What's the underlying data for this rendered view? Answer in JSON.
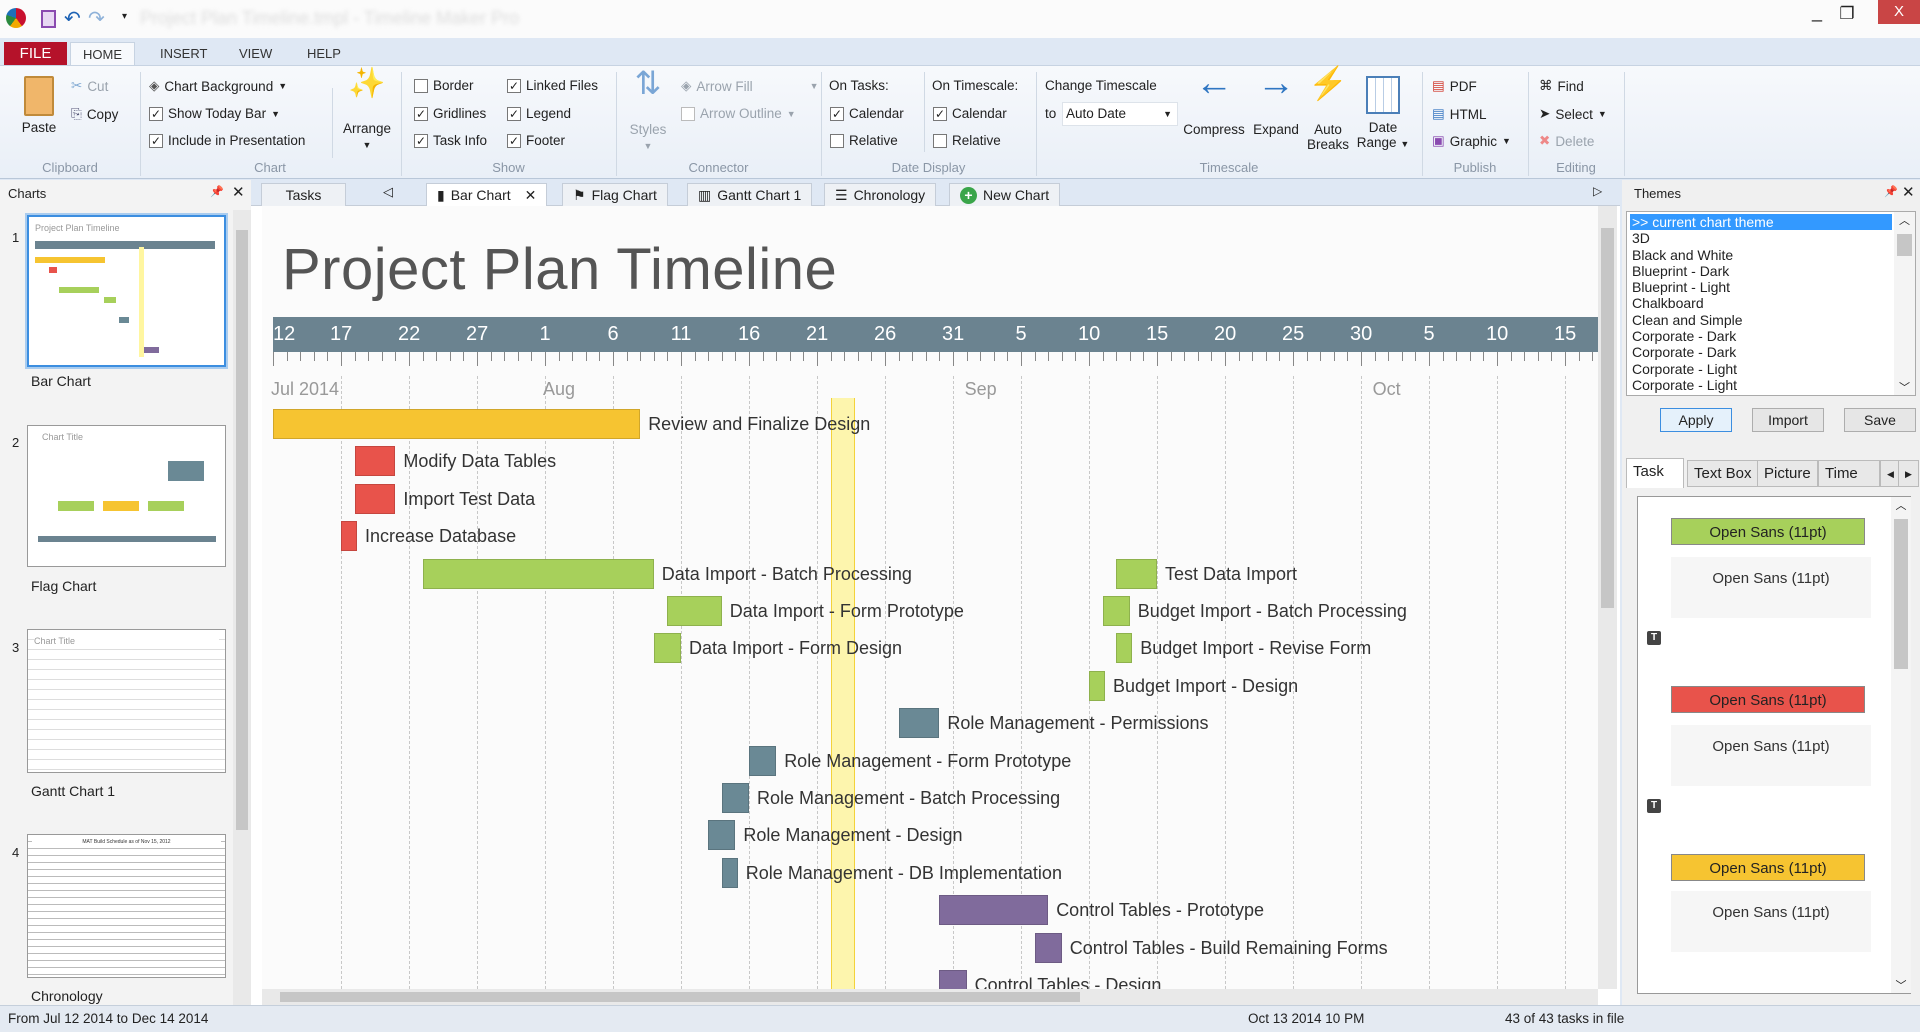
{
  "app": {
    "title": "Project Plan Timeline.tmpl - Timeline Maker Pro",
    "minimize": "_",
    "maximize": "❐",
    "close": "X"
  },
  "menu_tabs": [
    {
      "label": "FILE"
    },
    {
      "label": "HOME",
      "active": true
    },
    {
      "label": "INSERT"
    },
    {
      "label": "VIEW"
    },
    {
      "label": "HELP"
    }
  ],
  "ribbon": {
    "clipboard": {
      "label": "Clipboard",
      "paste": "Paste",
      "cut": "Cut",
      "copy": "Copy"
    },
    "chart": {
      "label": "Chart",
      "background": "Chart Background",
      "today_bar": "Show Today Bar",
      "include": "Include in Presentation",
      "arrange": "Arrange",
      "today_checked": true,
      "include_checked": true
    },
    "show": {
      "label": "Show",
      "items": [
        {
          "label": "Border",
          "checked": false
        },
        {
          "label": "Gridlines",
          "checked": true
        },
        {
          "label": "Task Info",
          "checked": true
        },
        {
          "label": "Linked Files",
          "checked": true
        },
        {
          "label": "Legend",
          "checked": true
        },
        {
          "label": "Footer",
          "checked": true
        }
      ]
    },
    "connector": {
      "label": "Connector",
      "styles": "Styles",
      "arrow_fill": "Arrow Fill",
      "arrow_outline": "Arrow Outline"
    },
    "date_display": {
      "label": "Date Display",
      "on_tasks": "On Tasks:",
      "on_timescale": "On Timescale:",
      "calendar": "Calendar",
      "relative": "Relative"
    },
    "timescale": {
      "label": "Timescale",
      "change": "Change Timescale",
      "to": "to",
      "value": "Auto Date",
      "compress": "Compress",
      "expand": "Expand",
      "auto": "Auto",
      "breaks": "Breaks",
      "date": "Date",
      "range": "Range"
    },
    "publish": {
      "label": "Publish",
      "pdf": "PDF",
      "html": "HTML",
      "graphic": "Graphic"
    },
    "editing": {
      "label": "Editing",
      "find": "Find",
      "select": "Select",
      "delete": "Delete"
    }
  },
  "charts_panel": {
    "title": "Charts",
    "items": [
      {
        "num": "1",
        "label": "Bar Chart"
      },
      {
        "num": "2",
        "label": "Flag Chart"
      },
      {
        "num": "3",
        "label": "Gantt Chart 1"
      },
      {
        "num": "4",
        "label": "Chronology"
      }
    ],
    "thumb_titles": [
      "Project Plan Timeline",
      "Chart Title",
      "Chart Title",
      "MAT Build Schedule as of Nov 15, 2012"
    ]
  },
  "doc_tabs": {
    "tasks": "Tasks",
    "tabs": [
      {
        "label": "Bar Chart",
        "icon": "bar-chart-icon"
      },
      {
        "label": "Flag Chart",
        "icon": "flag-icon"
      },
      {
        "label": "Gantt Chart 1",
        "icon": "gantt-icon"
      },
      {
        "label": "Chronology",
        "icon": "list-icon"
      },
      {
        "label": "New Chart",
        "icon": "plus-circle-icon"
      }
    ]
  },
  "main": {
    "chart": {
      "title": "Project Plan Timeline",
      "start": "2014-07-12",
      "scale_labels": [
        "12",
        "17",
        "22",
        "27",
        "1",
        "6",
        "11",
        "16",
        "21",
        "26",
        "31",
        "5",
        "10",
        "15",
        "20",
        "25",
        "30",
        "5",
        "10",
        "15"
      ],
      "months": [
        {
          "label": "Jul 2014",
          "date": "2014-07-12"
        },
        {
          "label": "Aug",
          "date": "2014-08-01"
        },
        {
          "label": "Sep",
          "date": "2014-09-01"
        },
        {
          "label": "Oct",
          "date": "2014-10-01"
        }
      ],
      "today": "2014-08-22",
      "colors": {
        "yellow": "#f6c431",
        "red": "#e8534b",
        "green": "#a7d05b",
        "slate": "#6a8995",
        "purple": "#806b9c",
        "band": "#6b8390"
      },
      "tasks": [
        {
          "label": "Review and Finalize Design",
          "start": "2014-07-12",
          "end": "2014-08-08",
          "row": 0,
          "color": "yellow"
        },
        {
          "label": "Modify Data Tables",
          "start": "2014-07-18",
          "end": "2014-07-21",
          "row": 1,
          "color": "red"
        },
        {
          "label": "Import Test Data",
          "start": "2014-07-18",
          "end": "2014-07-21",
          "row": 2,
          "color": "red"
        },
        {
          "label": "Increase Database",
          "start": "2014-07-17",
          "end": "2014-07-18",
          "row": 3,
          "color": "red"
        },
        {
          "label": "Data Import - Batch Processing",
          "start": "2014-07-23",
          "end": "2014-08-09",
          "row": 4,
          "color": "green"
        },
        {
          "label": "Data Import - Form Prototype",
          "start": "2014-08-10",
          "end": "2014-08-14",
          "row": 5,
          "color": "green"
        },
        {
          "label": "Data Import - Form Design",
          "start": "2014-08-09",
          "end": "2014-08-11",
          "row": 6,
          "color": "green"
        },
        {
          "label": "Test Data Import",
          "start": "2014-09-12",
          "end": "2014-09-15",
          "row": 4,
          "color": "green"
        },
        {
          "label": "Budget Import  - Batch Processing",
          "start": "2014-09-11",
          "end": "2014-09-13",
          "row": 5,
          "color": "green"
        },
        {
          "label": "Budget Import - Revise Form",
          "start": "2014-09-12",
          "end": "2014-09-13",
          "row": 6,
          "color": "green"
        },
        {
          "label": "Budget Import - Design",
          "start": "2014-09-10",
          "end": "2014-09-11",
          "row": 7,
          "color": "green"
        },
        {
          "label": "Role Management - Permissions",
          "start": "2014-08-27",
          "end": "2014-08-30",
          "row": 8,
          "color": "slate"
        },
        {
          "label": "Role Management - Form Prototype",
          "start": "2014-08-16",
          "end": "2014-08-18",
          "row": 9,
          "color": "slate"
        },
        {
          "label": "Role Management - Batch Processing",
          "start": "2014-08-14",
          "end": "2014-08-16",
          "row": 10,
          "color": "slate"
        },
        {
          "label": "Role Management - Design",
          "start": "2014-08-13",
          "end": "2014-08-15",
          "row": 11,
          "color": "slate"
        },
        {
          "label": "Role Management - DB Implementation",
          "start": "2014-08-14",
          "end": "2014-08-15",
          "row": 12,
          "color": "slate"
        },
        {
          "label": "Control Tables - Prototype",
          "start": "2014-08-30",
          "end": "2014-09-07",
          "row": 13,
          "color": "purple"
        },
        {
          "label": "Control Tables - Build Remaining Forms",
          "start": "2014-09-06",
          "end": "2014-09-08",
          "row": 14,
          "color": "purple"
        },
        {
          "label": "Control Tables - Design",
          "start": "2014-08-30",
          "end": "2014-09-01",
          "row": 15,
          "color": "purple"
        }
      ]
    }
  },
  "themes_panel": {
    "title": "Themes",
    "items": [
      ">> current chart theme",
      "3D",
      "Black and White",
      "Blueprint - Dark",
      "Blueprint - Light",
      "Chalkboard",
      "Clean and Simple",
      "Corporate - Dark",
      "Corporate - Dark",
      "Corporate - Light",
      "Corporate - Light"
    ],
    "apply": "Apply",
    "import": "Import",
    "save": "Save"
  },
  "props_panel": {
    "tabs": [
      "Task",
      "Text Box",
      "Picture",
      "Time Sc"
    ],
    "styles": [
      {
        "label": "Open Sans (11pt)",
        "color": "#a7d05b"
      },
      {
        "label": "Open Sans (11pt)",
        "color": "#e8534b"
      },
      {
        "label": "Open Sans (11pt)",
        "color": "#f6c431"
      }
    ],
    "plain": "Open Sans (11pt)",
    "t_icon": "T"
  },
  "status": {
    "range": "From Jul 12 2014  to Dec 14 2014",
    "now": "Oct 13 2014 10 PM",
    "count": "43 of 43 tasks in file"
  }
}
